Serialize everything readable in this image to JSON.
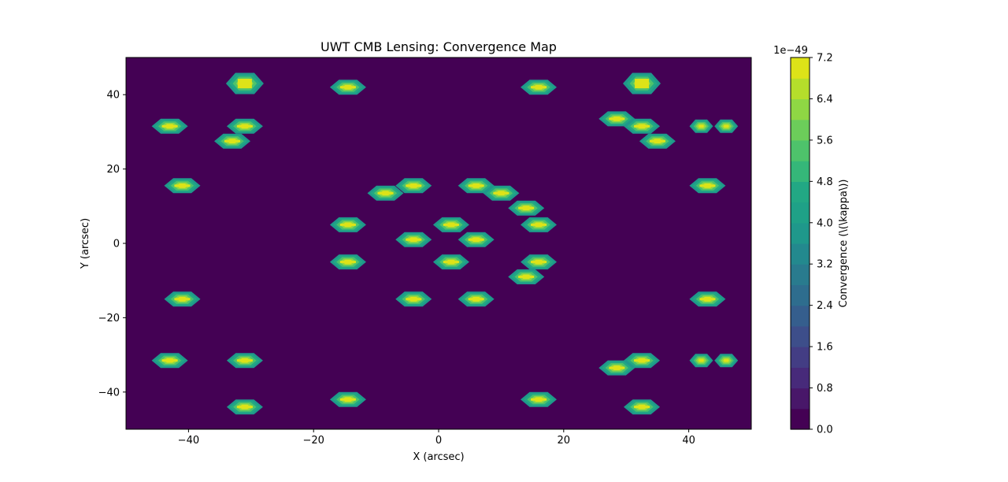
{
  "chart_data": {
    "type": "heatmap",
    "title": "UWT CMB Lensing: Convergence Map",
    "xlabel": "X (arcsec)",
    "ylabel": "Y (arcsec)",
    "xlim": [
      -50,
      50
    ],
    "ylim": [
      -50,
      50
    ],
    "x_ticks": [
      -40,
      -20,
      0,
      20,
      40
    ],
    "y_ticks": [
      -40,
      -20,
      0,
      20,
      40
    ],
    "x_tick_labels": [
      "−40",
      "−20",
      "0",
      "20",
      "40"
    ],
    "y_tick_labels": [
      "−40",
      "−20",
      "0",
      "20",
      "40"
    ],
    "grid": false,
    "colormap": "viridis",
    "background_color": "#440154",
    "colorbar": {
      "label": "Convergence (\\(\\kappa\\))",
      "multiplier_label": "1e−49",
      "range": [
        0.0,
        7.2
      ],
      "levels": 18,
      "ticks": [
        0.0,
        0.8,
        1.6,
        2.4,
        3.2,
        4.0,
        4.8,
        5.6,
        6.4,
        7.2
      ],
      "tick_labels": [
        "0.0",
        "0.8",
        "1.6",
        "2.4",
        "3.2",
        "4.0",
        "4.8",
        "5.6",
        "6.4",
        "7.2"
      ],
      "colors": [
        "#440154",
        "#481769",
        "#472a7a",
        "#433d84",
        "#3d4e8a",
        "#355e8d",
        "#2e6d8e",
        "#297b8e",
        "#23898e",
        "#1f988b",
        "#1fa187",
        "#22a884",
        "#35b779",
        "#4ec36b",
        "#6ccd5a",
        "#8fd744",
        "#b5de2b",
        "#dde318"
      ]
    },
    "peaks": [
      {
        "x": -31,
        "y": 43,
        "value": 7.2
      },
      {
        "x": 32.5,
        "y": 43,
        "value": 7.2
      },
      {
        "x": -14.5,
        "y": 42,
        "value": 6.8
      },
      {
        "x": 16,
        "y": 42,
        "value": 6.8
      },
      {
        "x": -43,
        "y": 31.5,
        "value": 6.8
      },
      {
        "x": -31,
        "y": 31.5,
        "value": 6.8
      },
      {
        "x": -33,
        "y": 27.5,
        "value": 6.8
      },
      {
        "x": 28.5,
        "y": 33.5,
        "value": 6.8
      },
      {
        "x": 32.5,
        "y": 31.5,
        "value": 6.8
      },
      {
        "x": 35,
        "y": 27.5,
        "value": 6.8
      },
      {
        "x": 42,
        "y": 31.5,
        "value": 6.5
      },
      {
        "x": 46,
        "y": 31.5,
        "value": 6.5
      },
      {
        "x": -41,
        "y": 15.5,
        "value": 6.8
      },
      {
        "x": -4,
        "y": 15.5,
        "value": 6.8
      },
      {
        "x": 6,
        "y": 15.5,
        "value": 6.8
      },
      {
        "x": -8.5,
        "y": 13.5,
        "value": 6.8
      },
      {
        "x": 10,
        "y": 13.5,
        "value": 6.8
      },
      {
        "x": 43,
        "y": 15.5,
        "value": 6.8
      },
      {
        "x": 14,
        "y": 9.5,
        "value": 6.8
      },
      {
        "x": -14.5,
        "y": 5,
        "value": 6.8
      },
      {
        "x": 2,
        "y": 5,
        "value": 6.8
      },
      {
        "x": 16,
        "y": 5,
        "value": 6.8
      },
      {
        "x": -4,
        "y": 1,
        "value": 6.8
      },
      {
        "x": 6,
        "y": 1,
        "value": 6.8
      },
      {
        "x": -14.5,
        "y": -5,
        "value": 6.8
      },
      {
        "x": 2,
        "y": -5,
        "value": 6.8
      },
      {
        "x": 16,
        "y": -5,
        "value": 6.8
      },
      {
        "x": 14,
        "y": -9,
        "value": 6.8
      },
      {
        "x": -41,
        "y": -15,
        "value": 6.8
      },
      {
        "x": -4,
        "y": -15,
        "value": 6.8
      },
      {
        "x": 6,
        "y": -15,
        "value": 6.8
      },
      {
        "x": 43,
        "y": -15,
        "value": 6.8
      },
      {
        "x": -43,
        "y": -31.5,
        "value": 6.8
      },
      {
        "x": -31,
        "y": -31.5,
        "value": 6.8
      },
      {
        "x": 32.5,
        "y": -31.5,
        "value": 6.8
      },
      {
        "x": 28.5,
        "y": -33.5,
        "value": 6.8
      },
      {
        "x": 42,
        "y": -31.5,
        "value": 6.5
      },
      {
        "x": 46,
        "y": -31.5,
        "value": 6.5
      },
      {
        "x": -14.5,
        "y": -42,
        "value": 6.8
      },
      {
        "x": 16,
        "y": -42,
        "value": 6.8
      },
      {
        "x": -31,
        "y": -44,
        "value": 6.8
      },
      {
        "x": 32.5,
        "y": -44,
        "value": 6.8
      }
    ]
  }
}
